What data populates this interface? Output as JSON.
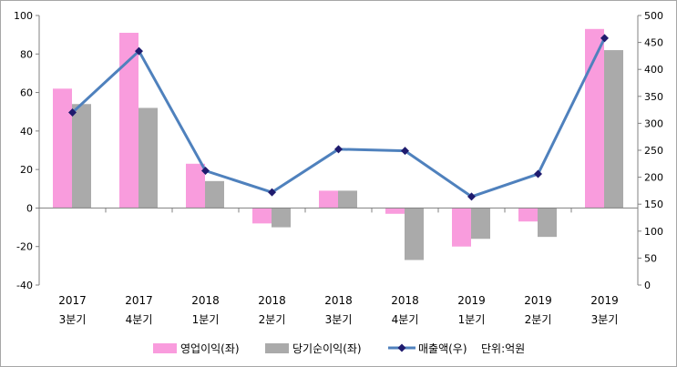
{
  "chart_data": {
    "type": "bar+line",
    "categories": [
      [
        "2017",
        "3분기"
      ],
      [
        "2017",
        "4분기"
      ],
      [
        "2018",
        "1분기"
      ],
      [
        "2018",
        "2분기"
      ],
      [
        "2018",
        "3분기"
      ],
      [
        "2018",
        "4분기"
      ],
      [
        "2019",
        "1분기"
      ],
      [
        "2019",
        "2분기"
      ],
      [
        "2019",
        "3분기"
      ]
    ],
    "series": [
      {
        "name": "영업이익(좌)",
        "type": "bar",
        "axis": "left",
        "color": "#f99cdd",
        "values": [
          62,
          91,
          23,
          -8,
          9,
          -3,
          -20,
          -7,
          93
        ]
      },
      {
        "name": "당기순이익(좌)",
        "type": "bar",
        "axis": "left",
        "color": "#aaaaaa",
        "values": [
          54,
          52,
          14,
          -10,
          9,
          -27,
          -16,
          -15,
          82
        ]
      },
      {
        "name": "매출액(우)",
        "type": "line",
        "axis": "right",
        "color": "#4f81bd",
        "marker_color": "#1f1b6e",
        "values": [
          320,
          434,
          212,
          172,
          252,
          249,
          164,
          206,
          458
        ]
      }
    ],
    "left_axis": {
      "min": -40,
      "max": 100,
      "step": 20,
      "ticks": [
        "-40",
        "-20",
        "0",
        "20",
        "40",
        "60",
        "80",
        "100"
      ]
    },
    "right_axis": {
      "min": 0,
      "max": 500,
      "step": 50,
      "ticks": [
        "0",
        "50",
        "100",
        "150",
        "200",
        "250",
        "300",
        "350",
        "400",
        "450",
        "500"
      ]
    },
    "unit_note": "단위:억원",
    "legend_position": "bottom",
    "gridlines": false
  }
}
